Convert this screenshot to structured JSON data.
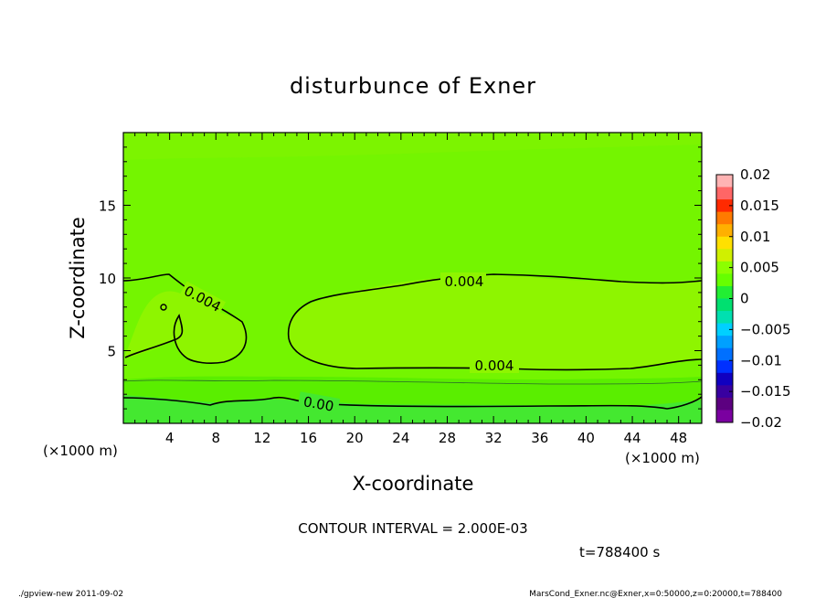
{
  "chart_data": {
    "type": "contour",
    "title": "disturbunce of Exner",
    "xlabel": "X-coordinate",
    "ylabel": "Z-coordinate",
    "x_unit_left": "(×1000 m)",
    "x_unit_right": "(×1000 m)",
    "xlim": [
      0,
      50
    ],
    "ylim": [
      0,
      20
    ],
    "x_ticks": [
      4,
      8,
      12,
      16,
      20,
      24,
      28,
      32,
      36,
      40,
      44,
      48
    ],
    "y_ticks": [
      5,
      10,
      15
    ],
    "colorbar": {
      "levels": [
        -0.02,
        -0.015,
        -0.01,
        -0.005,
        0,
        0.005,
        0.01,
        0.015,
        0.02
      ],
      "labels": [
        "0.02",
        "0.015",
        "0.01",
        "0.005",
        "0",
        "−0.005",
        "−0.01",
        "−0.015",
        "−0.02"
      ],
      "colors": [
        "#ffb3b3",
        "#ff6666",
        "#ff2a00",
        "#ff7a00",
        "#ffb000",
        "#ffe000",
        "#d0f000",
        "#8cff00",
        "#66ff00",
        "#22ee33",
        "#00e070",
        "#00e0b0",
        "#00d0ff",
        "#00a0ff",
        "#0070ff",
        "#0030ff",
        "#1000c0",
        "#3800a0",
        "#5c0080",
        "#7a00a0"
      ]
    },
    "contour_labels": [
      {
        "text": "0.004",
        "x": 4.5,
        "z": 8.2
      },
      {
        "text": "0.004",
        "x": 29.5,
        "z": 9.7
      },
      {
        "text": "0.004",
        "x": 30.5,
        "z": 3.9
      },
      {
        "text": "0.00",
        "x": 17,
        "z": 1.3
      }
    ],
    "contour_interval": "CONTOUR INTERVAL = 2.000E-03",
    "time": "t=788400  s"
  },
  "footer": {
    "left": "./gpview-new   2011-09-02",
    "right": "MarsCond_Exner.nc@Exner,x=0:50000,z=0:20000,t=788400"
  }
}
